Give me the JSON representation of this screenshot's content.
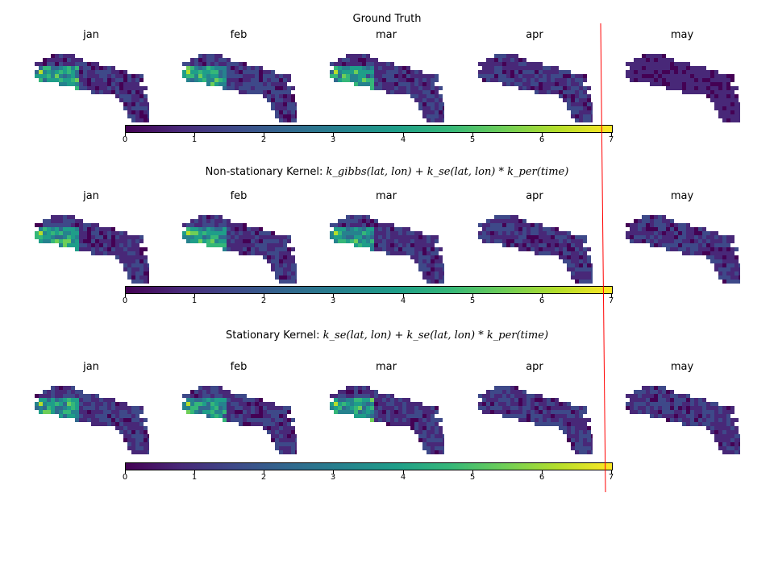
{
  "chart_data": {
    "type": "heatmap",
    "colormap": "viridis",
    "months": [
      "jan",
      "feb",
      "mar",
      "apr",
      "may"
    ],
    "colorbar": {
      "ticks": [
        "0",
        "1",
        "2",
        "3",
        "4",
        "5",
        "6",
        "7"
      ],
      "range": [
        0,
        7
      ]
    },
    "rows": [
      {
        "title_prefix": "Ground Truth",
        "title_math": ""
      },
      {
        "title_prefix": "Non-stationary Kernel: ",
        "title_math": "k_gibbs(lat, lon) + k_se(lat, lon) * k_per(time)"
      },
      {
        "title_prefix": "Stationary Kernel: ",
        "title_math": "k_se(lat, lon) + k_se(lat, lon) * k_per(time)"
      }
    ],
    "annotation": {
      "type": "vertical-line",
      "color": "#ff0000"
    }
  }
}
